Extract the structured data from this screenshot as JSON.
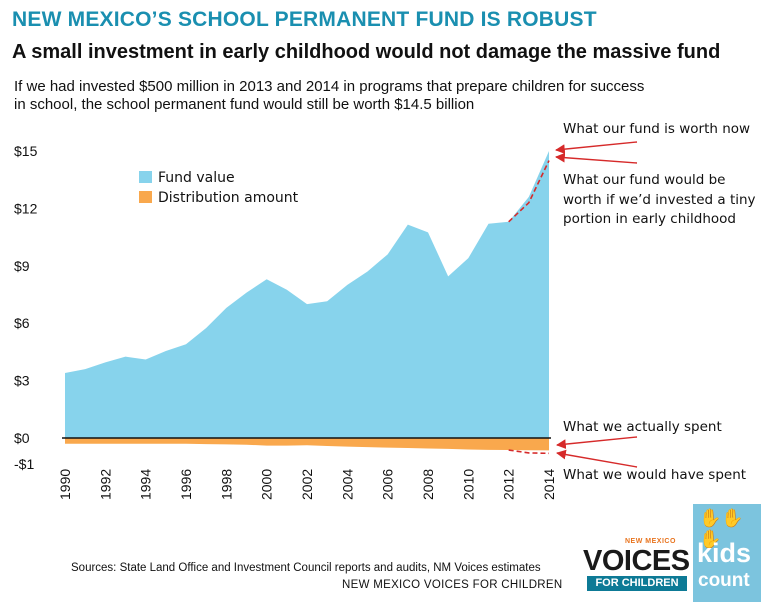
{
  "header": {
    "title": "NEW MEXICO’S SCHOOL PERMANENT FUND IS ROBUST",
    "subtitle": "A small investment in early childhood would not damage the massive fund",
    "description_line1": "If we had invested $500 million in 2013 and 2014 in programs that prepare children for success",
    "description_line2": "in school, the school permanent fund would still be worth $14.5 billion"
  },
  "footer": {
    "sources": "Sources: State Land Office and Investment Council reports and audits, NM Voices estimates",
    "organization": "NEW MEXICO VOICES FOR CHILDREN"
  },
  "logos": {
    "voices_top": "NEW MEXICO",
    "voices_main": "VOICES",
    "voices_bottom": "FOR CHILDREN",
    "kids": "kids",
    "count": "count"
  },
  "annotations": {
    "worth_now": "What our fund is worth now",
    "would_be_1": "What our fund would be",
    "would_be_2": "worth if we’d invested a tiny",
    "would_be_3": "portion in early childhood",
    "actually_spent": "What we actually spent",
    "would_have_spent": "What we would have spent"
  },
  "colors": {
    "fund": "#87d3ec",
    "distribution": "#f9a84d",
    "title": "#1a8fb0",
    "arrow": "#d62a2a"
  },
  "chart_data": {
    "type": "area",
    "x": [
      1990,
      1991,
      1992,
      1993,
      1994,
      1995,
      1996,
      1997,
      1998,
      1999,
      2000,
      2001,
      2002,
      2003,
      2004,
      2005,
      2006,
      2007,
      2008,
      2009,
      2010,
      2011,
      2012,
      2013,
      2014
    ],
    "x_tick_labels": [
      "1990",
      "1992",
      "1994",
      "1996",
      "1998",
      "2000",
      "2002",
      "2004",
      "2006",
      "2008",
      "2010",
      "2012",
      "2014"
    ],
    "y_tick_labels": [
      "$15",
      "$12",
      "$9",
      "$6",
      "$3",
      "$0",
      "-$1"
    ],
    "y_ticks": [
      15,
      12,
      9,
      6,
      3,
      0,
      -1
    ],
    "ylim": [
      -1.2,
      15.5
    ],
    "series": [
      {
        "name": "Fund value",
        "values": [
          3.4,
          3.6,
          3.95,
          4.25,
          4.1,
          4.55,
          4.9,
          5.75,
          6.8,
          7.6,
          8.3,
          7.75,
          7.0,
          7.15,
          8.0,
          8.7,
          9.6,
          11.15,
          10.75,
          8.45,
          9.4,
          11.2,
          11.3,
          12.6,
          15.0
        ]
      },
      {
        "name": "Distribution amount",
        "values": [
          -0.3,
          -0.3,
          -0.3,
          -0.3,
          -0.3,
          -0.3,
          -0.3,
          -0.32,
          -0.33,
          -0.35,
          -0.4,
          -0.4,
          -0.38,
          -0.42,
          -0.45,
          -0.48,
          -0.5,
          -0.52,
          -0.55,
          -0.57,
          -0.6,
          -0.62,
          -0.63,
          -0.64,
          -0.65
        ]
      },
      {
        "name": "What our fund would be worth if we’d invested a tiny portion in early childhood",
        "x": [
          2012,
          2013,
          2014
        ],
        "values": [
          11.3,
          12.3,
          14.5
        ]
      },
      {
        "name": "What we would have spent",
        "x": [
          2012,
          2013,
          2014
        ],
        "values": [
          -0.63,
          -0.78,
          -0.8
        ]
      }
    ],
    "legend_position": "top-left",
    "grid": false
  }
}
